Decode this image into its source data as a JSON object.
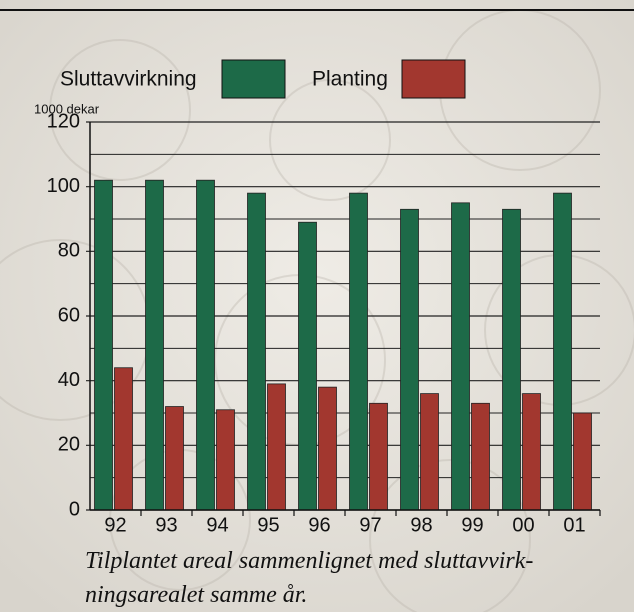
{
  "chart_data": {
    "type": "bar",
    "y_axis_label": "1000 dekar",
    "categories": [
      "92",
      "93",
      "94",
      "95",
      "96",
      "97",
      "98",
      "99",
      "00",
      "01"
    ],
    "series": [
      {
        "name": "Sluttavvirkning",
        "color": "#1d6a48",
        "values": [
          102,
          102,
          102,
          98,
          89,
          98,
          93,
          95,
          93,
          98
        ]
      },
      {
        "name": "Planting",
        "color": "#a2372f",
        "values": [
          44,
          32,
          31,
          39,
          38,
          33,
          36,
          33,
          36,
          30
        ]
      }
    ],
    "ylim": [
      0,
      120
    ],
    "yticks": [
      0,
      20,
      40,
      60,
      80,
      100,
      120
    ],
    "minor_yticks": [
      10,
      30,
      50,
      70,
      90,
      110
    ],
    "grid": true,
    "caption": [
      "Tilplantet areal sammenlignet med sluttavvirk-",
      "ningsarealet samme år."
    ]
  }
}
